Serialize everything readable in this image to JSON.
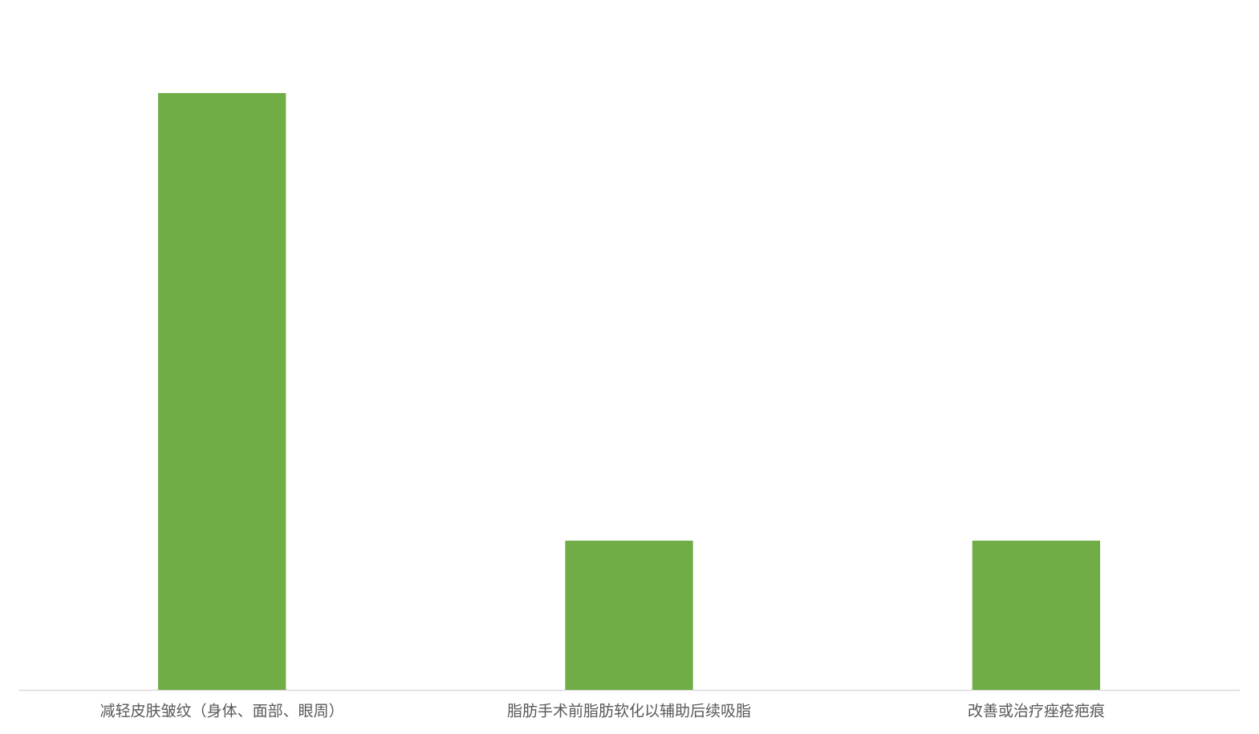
{
  "chart_data": {
    "type": "bar",
    "categories": [
      "减轻皮肤皱纹（身体、面部、眼周）",
      "脂肪手术前脂肪软化以辅助后续吸脂",
      "改善或治疗痤疮疤痕"
    ],
    "values": [
      4,
      1,
      1
    ],
    "color": "#70ad47",
    "ylim": [
      0,
      4
    ],
    "grid": false
  }
}
